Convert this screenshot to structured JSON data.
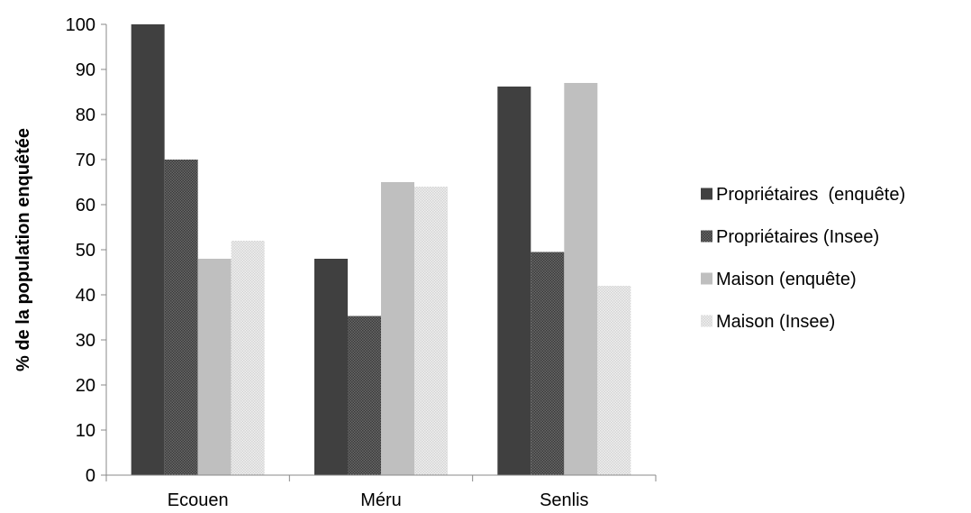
{
  "chart_data": {
    "type": "bar",
    "categories": [
      "Ecouen",
      "Méru",
      "Senlis"
    ],
    "series": [
      {
        "name": "Propriétaires  (enquête)",
        "values": [
          100,
          48,
          86.2
        ],
        "color": "#404040",
        "pattern": "solid"
      },
      {
        "name": "Propriétaires (Insee)",
        "values": [
          70,
          35.3,
          49.5
        ],
        "color": "#5a5a5a",
        "pattern": "dots-dark"
      },
      {
        "name": "Maison (enquête)",
        "values": [
          48,
          65,
          87
        ],
        "color": "#bfbfbf",
        "pattern": "solid"
      },
      {
        "name": "Maison (Insee)",
        "values": [
          52,
          64,
          42
        ],
        "color": "#e6e6e6",
        "pattern": "dots-light"
      }
    ],
    "title": "",
    "xlabel": "",
    "ylabel": "% de la population enquêtée",
    "ylim": [
      0,
      100
    ],
    "yticks": [
      0,
      10,
      20,
      30,
      40,
      50,
      60,
      70,
      80,
      90,
      100
    ],
    "grid": false,
    "legend_position": "right"
  }
}
